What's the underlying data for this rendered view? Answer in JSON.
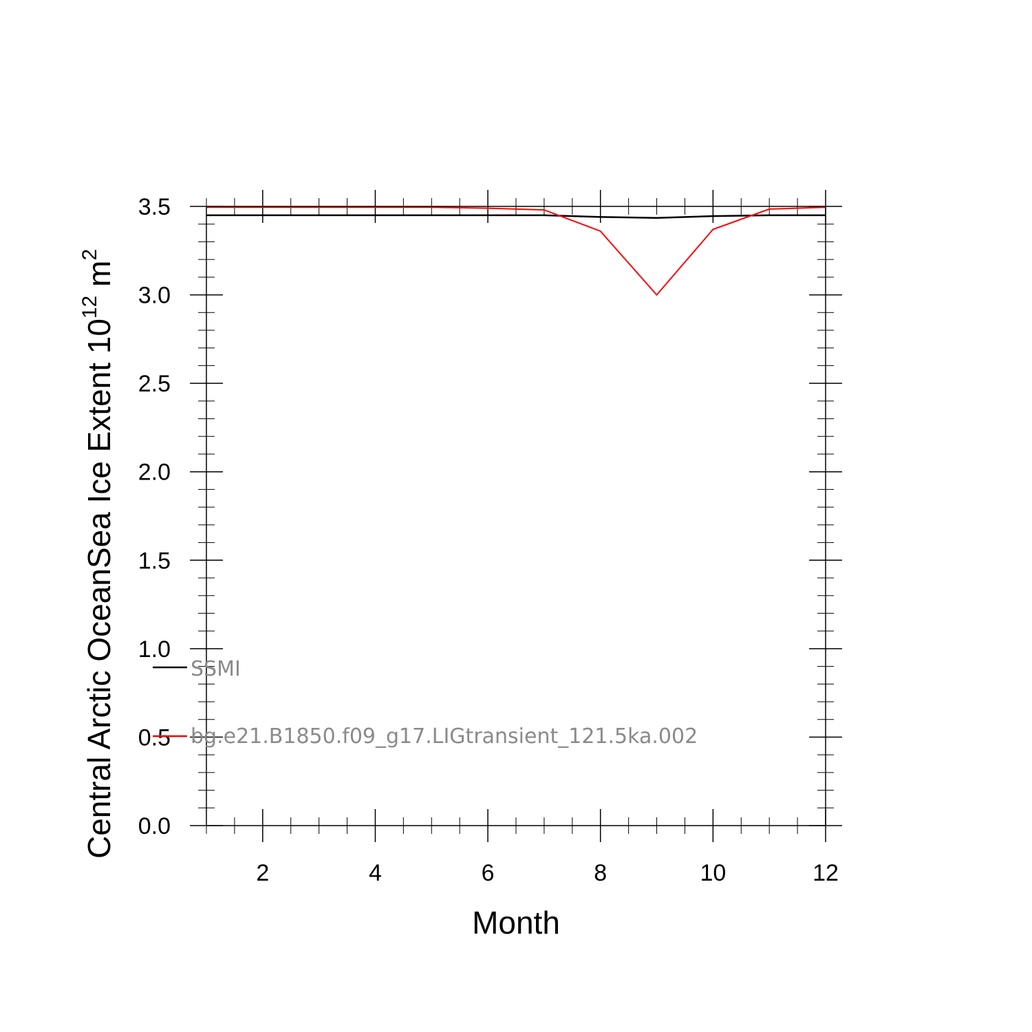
{
  "chart_data": {
    "type": "line",
    "title": "",
    "xlabel": "Month",
    "ylabel_parts": {
      "text": "Central Arctic OceanSea Ice Extent 10",
      "exp": "12",
      "unit": " m",
      "unit_exp": "2"
    },
    "x": [
      1,
      2,
      3,
      4,
      5,
      6,
      7,
      8,
      9,
      10,
      11,
      12
    ],
    "xlim": [
      1,
      12
    ],
    "ylim": [
      0,
      3.5
    ],
    "x_ticks": [
      2,
      4,
      6,
      8,
      10,
      12
    ],
    "x_tick_labels": [
      "2",
      "4",
      "6",
      "8",
      "10",
      "12"
    ],
    "y_ticks": [
      0,
      0.5,
      1.0,
      1.5,
      2.0,
      2.5,
      3.0,
      3.5
    ],
    "y_tick_labels": [
      "0.0",
      "0.5",
      "1.0",
      "1.5",
      "2.0",
      "2.5",
      "3.0",
      "3.5"
    ],
    "grid": false,
    "legend_position": "lower-left inside",
    "series": [
      {
        "name": "SSMI",
        "color": "#000000",
        "values": [
          3.45,
          3.45,
          3.45,
          3.45,
          3.45,
          3.45,
          3.45,
          3.44,
          3.435,
          3.445,
          3.45,
          3.45
        ]
      },
      {
        "name": "bg.e21.B1850.f09_g17.LIGtransient_121.5ka.002",
        "color": "#ff0000",
        "values": [
          3.495,
          3.495,
          3.495,
          3.495,
          3.495,
          3.49,
          3.48,
          3.36,
          3.0,
          3.37,
          3.485,
          3.495
        ]
      }
    ]
  }
}
